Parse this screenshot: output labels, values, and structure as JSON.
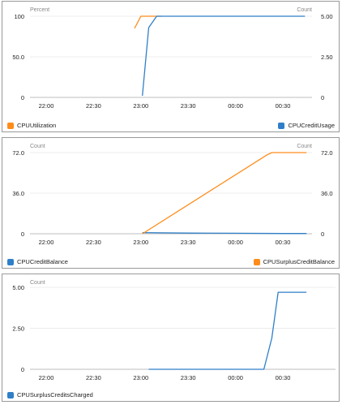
{
  "chart_data": [
    {
      "type": "line",
      "corner_mark": "",
      "left_axis_title": "Percent",
      "right_axis_title": "Count",
      "x_ticks": [
        "22:00",
        "22:30",
        "23:00",
        "23:30",
        "00:00",
        "00:30"
      ],
      "y_ticks_left": [
        "100",
        "50.0",
        "0"
      ],
      "y_ticks_right": [
        "5.00",
        "2.50",
        "0"
      ],
      "ylim_left": [
        0,
        100
      ],
      "ylim_right": [
        0,
        5
      ],
      "series": [
        {
          "name": "CPUUtilization",
          "color": "#ff8c1a",
          "axis": "left",
          "legend_pos": "left",
          "x": [
            "22:56",
            "23:00",
            "23:07",
            "23:13"
          ],
          "y": [
            85,
            100,
            100,
            100
          ]
        },
        {
          "name": "CPUCreditUsage",
          "color": "#2f7fc8",
          "axis": "right",
          "legend_pos": "right",
          "x": [
            "23:01",
            "23:05",
            "23:10",
            "23:30",
            "00:00",
            "00:30",
            "00:44"
          ],
          "y": [
            0.1,
            4.3,
            5.0,
            5.0,
            5.0,
            5.0,
            5.0
          ]
        }
      ]
    },
    {
      "type": "line",
      "corner_mark": "",
      "left_axis_title": "Count",
      "right_axis_title": "Count",
      "x_ticks": [
        "22:00",
        "22:30",
        "23:00",
        "23:30",
        "00:00",
        "00:30"
      ],
      "y_ticks_left": [
        "72.0",
        "36.0",
        "0"
      ],
      "y_ticks_right": [
        "72.0",
        "36.0",
        "0"
      ],
      "ylim_left": [
        0,
        72
      ],
      "ylim_right": [
        0,
        72
      ],
      "series": [
        {
          "name": "CPUCreditBalance",
          "color": "#2f7fc8",
          "axis": "left",
          "legend_pos": "left",
          "x": [
            "23:01",
            "23:30",
            "00:00",
            "00:30",
            "00:45"
          ],
          "y": [
            1.0,
            0.6,
            0.4,
            0.2,
            0.2
          ]
        },
        {
          "name": "CPUSurplusCreditBalance",
          "color": "#ff8c1a",
          "axis": "right",
          "legend_pos": "right",
          "x": [
            "23:01",
            "00:20",
            "00:23",
            "00:26",
            "00:45"
          ],
          "y": [
            0,
            70,
            72,
            72,
            72
          ]
        }
      ]
    },
    {
      "type": "line",
      "corner_mark": "",
      "left_axis_title": "Count",
      "right_axis_title": "",
      "x_ticks": [
        "22:00",
        "22:30",
        "23:00",
        "23:30",
        "00:00",
        "00:30"
      ],
      "y_ticks_left": [
        "5.00",
        "2.50",
        "0"
      ],
      "y_ticks_right": [],
      "ylim_left": [
        0,
        5
      ],
      "ylim_right": null,
      "series": [
        {
          "name": "CPUSurplusCreditsCharged",
          "color": "#2f7fc8",
          "axis": "left",
          "legend_pos": "left",
          "x": [
            "23:05",
            "00:00",
            "00:18",
            "00:23",
            "00:27",
            "00:45"
          ],
          "y": [
            0,
            0,
            0,
            1.9,
            4.7,
            4.7
          ]
        }
      ]
    }
  ]
}
